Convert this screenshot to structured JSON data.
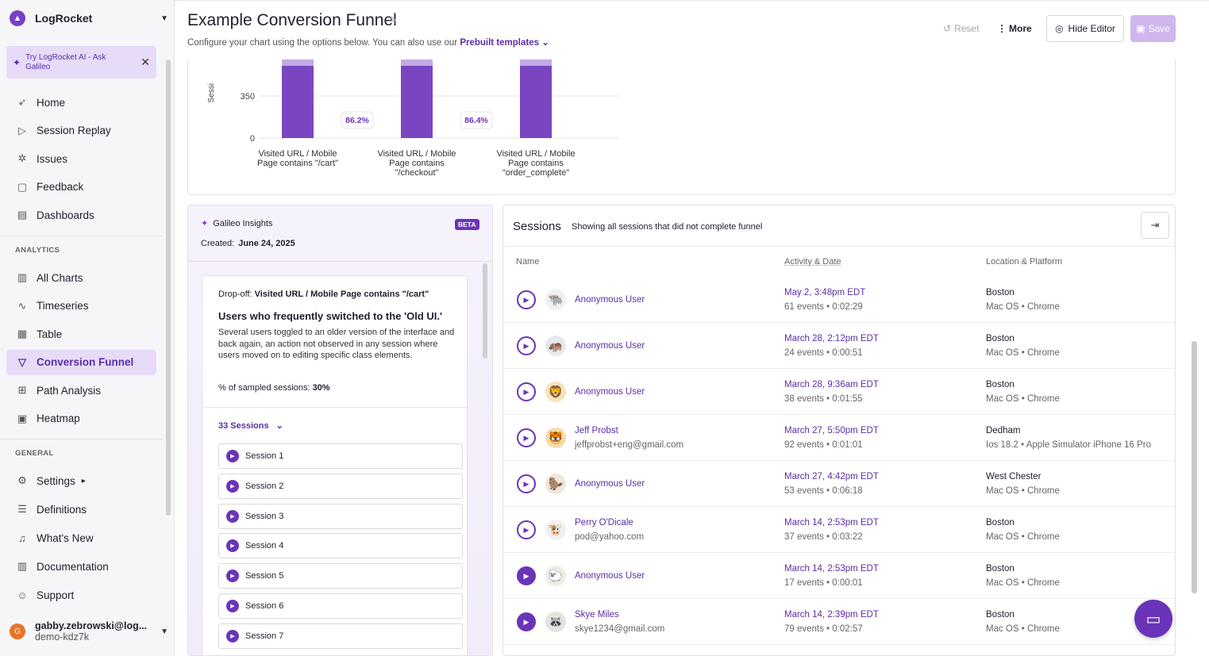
{
  "sidebar": {
    "org_name": "LogRocket",
    "ai_banner": "Try LogRocket AI - Ask Galileo",
    "nav_main": [
      {
        "label": "Home",
        "icon": "rocket-icon"
      },
      {
        "label": "Session Replay",
        "icon": "replay-icon"
      },
      {
        "label": "Issues",
        "icon": "bug-icon"
      },
      {
        "label": "Feedback",
        "icon": "chat-icon"
      },
      {
        "label": "Dashboards",
        "icon": "dashboard-icon"
      }
    ],
    "analytics_label": "ANALYTICS",
    "nav_analytics": [
      {
        "label": "All Charts",
        "icon": "bar-chart-icon"
      },
      {
        "label": "Timeseries",
        "icon": "line-chart-icon"
      },
      {
        "label": "Table",
        "icon": "table-icon"
      },
      {
        "label": "Conversion Funnel",
        "icon": "funnel-icon"
      },
      {
        "label": "Path Analysis",
        "icon": "path-icon"
      },
      {
        "label": "Heatmap",
        "icon": "heatmap-icon"
      }
    ],
    "general_label": "GENERAL",
    "nav_general": [
      {
        "label": "Settings",
        "icon": "gear-icon"
      },
      {
        "label": "Definitions",
        "icon": "definitions-icon"
      },
      {
        "label": "What's New",
        "icon": "bell-icon"
      },
      {
        "label": "Documentation",
        "icon": "book-icon"
      },
      {
        "label": "Support",
        "icon": "support-icon"
      }
    ],
    "user_initial": "G",
    "user_email": "gabby.zebrowski@log...",
    "user_project": "demo-kdz7k"
  },
  "header": {
    "title": "Example Conversion Funnel",
    "subtitle": "Configure your chart using the options below. You can also use our",
    "templates_link": "Prebuilt templates",
    "reset_label": "Reset",
    "more_label": "More",
    "hide_editor_label": "Hide Editor",
    "save_label": "Save"
  },
  "chart_data": {
    "type": "bar",
    "ylabel": "Sessi",
    "yticks": [
      0,
      350
    ],
    "categories": [
      "Visited URL / Mobile Page contains \"/cart\"",
      "Visited URL / Mobile Page contains \"/checkout\"",
      "Visited URL / Mobile Page contains \"order_complete\""
    ],
    "category_lines": [
      [
        "Visited URL / Mobile",
        "Page contains \"/cart\""
      ],
      [
        "Visited URL / Mobile",
        "Page contains",
        "\"/checkout\""
      ],
      [
        "Visited URL / Mobile",
        "Page contains",
        "\"order_complete\""
      ]
    ],
    "conversion_labels": [
      "86.2%",
      "86.4%"
    ],
    "bar_color": "#7b45c2"
  },
  "insights": {
    "heading": "Galileo Insights",
    "badge": "BETA",
    "created_label": "Created:",
    "created_date": "June 24, 2025",
    "dropoff_label": "Drop-off:",
    "dropoff_step": "Visited URL / Mobile Page contains \"/cart\"",
    "finding_title": "Users who frequently switched to the 'Old UI.'",
    "finding_desc": "Several users toggled to an older version of the interface and back again, an action not observed in any session where users moved on to editing specific class elements.",
    "pct_label": "% of sampled sessions:",
    "pct_value": "30%",
    "sessions_toggle": "33 Sessions",
    "sessions": [
      "Session 1",
      "Session 2",
      "Session 3",
      "Session 4",
      "Session 5",
      "Session 6",
      "Session 7"
    ]
  },
  "sessions_panel": {
    "title": "Sessions",
    "subtitle": "Showing all sessions that did not complete funnel",
    "col_name": "Name",
    "col_date": "Activity & Date",
    "col_location": "Location & Platform",
    "rows": [
      {
        "name": "Anonymous User",
        "email": "",
        "date": "May 2, 3:48pm EDT",
        "events": "61 events • 0:02:29",
        "location": "Boston",
        "platform": "Mac OS • Chrome",
        "avatar": "🐃",
        "avatar_bg": "#eef0f2",
        "play_filled": false
      },
      {
        "name": "Anonymous User",
        "email": "",
        "date": "March 28, 2:12pm EDT",
        "events": "24 events • 0:00:51",
        "location": "Boston",
        "platform": "Mac OS • Chrome",
        "avatar": "🦛",
        "avatar_bg": "#e7e9ee",
        "play_filled": false
      },
      {
        "name": "Anonymous User",
        "email": "",
        "date": "March 28, 9:36am EDT",
        "events": "38 events • 0:01:55",
        "location": "Boston",
        "platform": "Mac OS • Chrome",
        "avatar": "🦁",
        "avatar_bg": "#f8e3b5",
        "play_filled": false
      },
      {
        "name": "Jeff Probst",
        "email": "jeffprobst+eng@gmail.com",
        "date": "March 27, 5:50pm EDT",
        "events": "92 events • 0:01:01",
        "location": "Dedham",
        "platform": "Ios 18.2 • Apple Simulator iPhone 16 Pro",
        "avatar": "🐯",
        "avatar_bg": "#f6dcaa",
        "play_filled": false
      },
      {
        "name": "Anonymous User",
        "email": "",
        "date": "March 27, 4:42pm EDT",
        "events": "53 events • 0:06:18",
        "location": "West Chester",
        "platform": "Mac OS • Chrome",
        "avatar": "🦫",
        "avatar_bg": "#efe6dc",
        "play_filled": false
      },
      {
        "name": "Perry O'Dicale",
        "email": "pod@yahoo.com",
        "date": "March 14, 2:53pm EDT",
        "events": "37 events • 0:03:22",
        "location": "Boston",
        "platform": "Mac OS • Chrome",
        "avatar": "🐮",
        "avatar_bg": "#f1f1f1",
        "play_filled": false
      },
      {
        "name": "Anonymous User",
        "email": "",
        "date": "March 14, 2:53pm EDT",
        "events": "17 events • 0:00:01",
        "location": "Boston",
        "platform": "Mac OS • Chrome",
        "avatar": "🐑",
        "avatar_bg": "#f1ede6",
        "play_filled": true
      },
      {
        "name": "Skye Miles",
        "email": "skye1234@gmail.com",
        "date": "March 14, 2:39pm EDT",
        "events": "79 events • 0:02:57",
        "location": "Boston",
        "platform": "Mac OS • Chrome",
        "avatar": "🦝",
        "avatar_bg": "#e6e3df",
        "play_filled": true
      }
    ]
  }
}
